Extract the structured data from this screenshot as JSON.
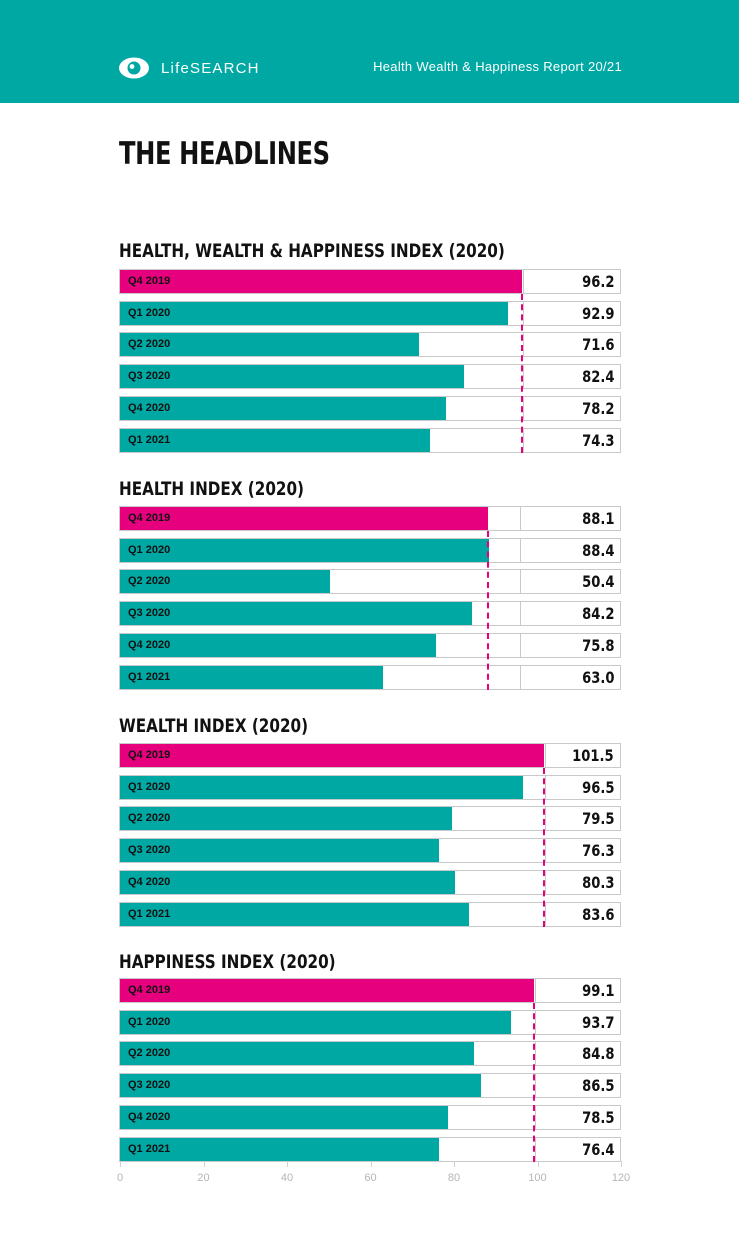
{
  "header": {
    "brand": "LifeSEARCH",
    "report_title": "Health Wealth & Happiness Report 20/21",
    "background_color": "#00a8a4"
  },
  "page_title": "THE HEADLINES",
  "colors": {
    "baseline": "#e6007e",
    "bars": "#00a8a4",
    "reference_line": "#e6007e"
  },
  "chart_data": [
    {
      "type": "bar",
      "orientation": "horizontal",
      "title": "HEALTH, WEALTH & HAPPINESS INDEX (2020)",
      "categories": [
        "Q4 2019",
        "Q1 2020",
        "Q2 2020",
        "Q3 2020",
        "Q4 2020",
        "Q1 2021"
      ],
      "values": [
        96.2,
        92.9,
        71.6,
        82.4,
        78.2,
        74.3
      ],
      "value_labels": [
        "96.2",
        "92.9",
        "71.6",
        "82.4",
        "78.2",
        "74.3"
      ],
      "reference_value": 96.2,
      "xlim": [
        0,
        120
      ]
    },
    {
      "type": "bar",
      "orientation": "horizontal",
      "title": "HEALTH INDEX (2020)",
      "categories": [
        "Q4 2019",
        "Q1 2020",
        "Q2 2020",
        "Q3 2020",
        "Q4 2020",
        "Q1 2021"
      ],
      "values": [
        88.1,
        88.4,
        50.4,
        84.2,
        75.8,
        63.0
      ],
      "value_labels": [
        "88.1",
        "88.4",
        "50.4",
        "84.2",
        "75.8",
        "63.0"
      ],
      "reference_value": 88.1,
      "xlim": [
        0,
        120
      ]
    },
    {
      "type": "bar",
      "orientation": "horizontal",
      "title": "WEALTH INDEX (2020)",
      "categories": [
        "Q4 2019",
        "Q1 2020",
        "Q2 2020",
        "Q3 2020",
        "Q4 2020",
        "Q1 2021"
      ],
      "values": [
        101.5,
        96.5,
        79.5,
        76.3,
        80.3,
        83.6
      ],
      "value_labels": [
        "101.5",
        "96.5",
        "79.5",
        "76.3",
        "80.3",
        "83.6"
      ],
      "reference_value": 101.5,
      "xlim": [
        0,
        120
      ]
    },
    {
      "type": "bar",
      "orientation": "horizontal",
      "title": "HAPPINESS INDEX (2020)",
      "categories": [
        "Q4 2019",
        "Q1 2020",
        "Q2 2020",
        "Q3 2020",
        "Q4 2020",
        "Q1 2021"
      ],
      "values": [
        99.1,
        93.7,
        84.8,
        86.5,
        78.5,
        76.4
      ],
      "value_labels": [
        "99.1",
        "93.7",
        "84.8",
        "86.5",
        "78.5",
        "76.4"
      ],
      "reference_value": 99.1,
      "xlim": [
        0,
        120
      ]
    }
  ],
  "x_axis": {
    "ticks": [
      0,
      20,
      40,
      60,
      80,
      100,
      120
    ],
    "tick_labels": [
      "0",
      "20",
      "40",
      "60",
      "80",
      "100",
      "120"
    ]
  }
}
